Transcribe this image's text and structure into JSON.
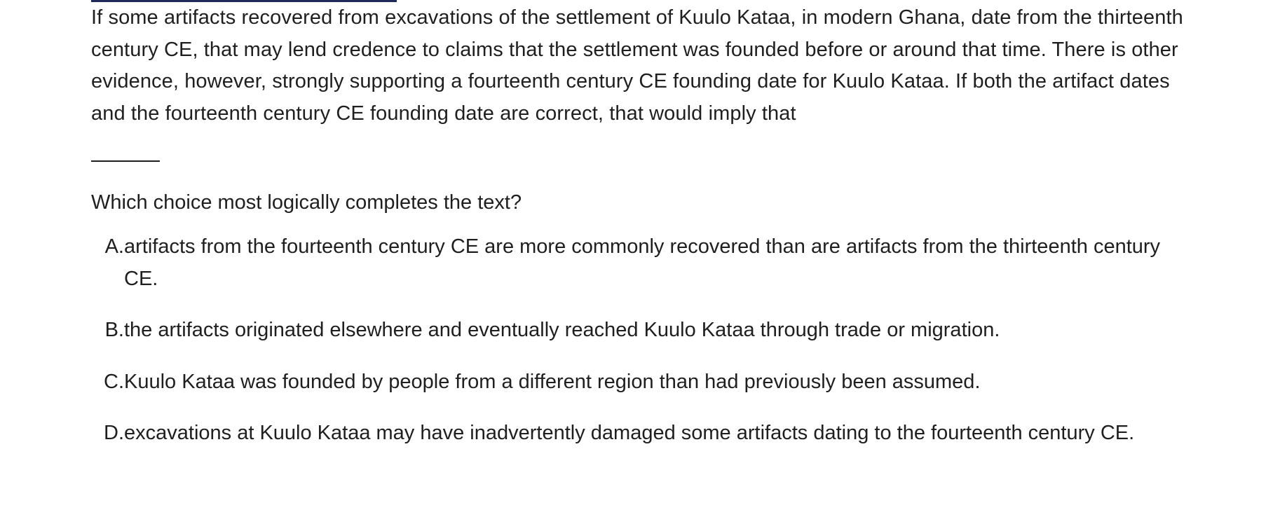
{
  "passage": {
    "text": "If some artifacts recovered from excavations of the settlement of Kuulo Kataa, in modern Ghana, date from the thirteenth century CE, that may lend credence to claims that the settlement was founded before or around that time. There is other evidence, however, strongly supporting a fourteenth century CE founding date for Kuulo Kataa. If both the artifact dates and the fourteenth century CE founding date are correct, that would imply that"
  },
  "question": {
    "prompt": "Which choice most logically completes the text?"
  },
  "choices": [
    {
      "letter": "A.",
      "text": "artifacts from the fourteenth century CE are more commonly recovered than are artifacts from the thirteenth century CE."
    },
    {
      "letter": "B.",
      "text": "the artifacts originated elsewhere and eventually reached Kuulo Kataa through trade or migration."
    },
    {
      "letter": "C.",
      "text": "Kuulo Kataa was founded by people from a different region than had previously been assumed."
    },
    {
      "letter": "D.",
      "text": "excavations at Kuulo Kataa may have inadvertently damaged some artifacts dating to the fourteenth century CE."
    }
  ],
  "colors": {
    "text": "#1f1f1f",
    "top_rule": "#1e2a5a",
    "background": "#ffffff"
  }
}
